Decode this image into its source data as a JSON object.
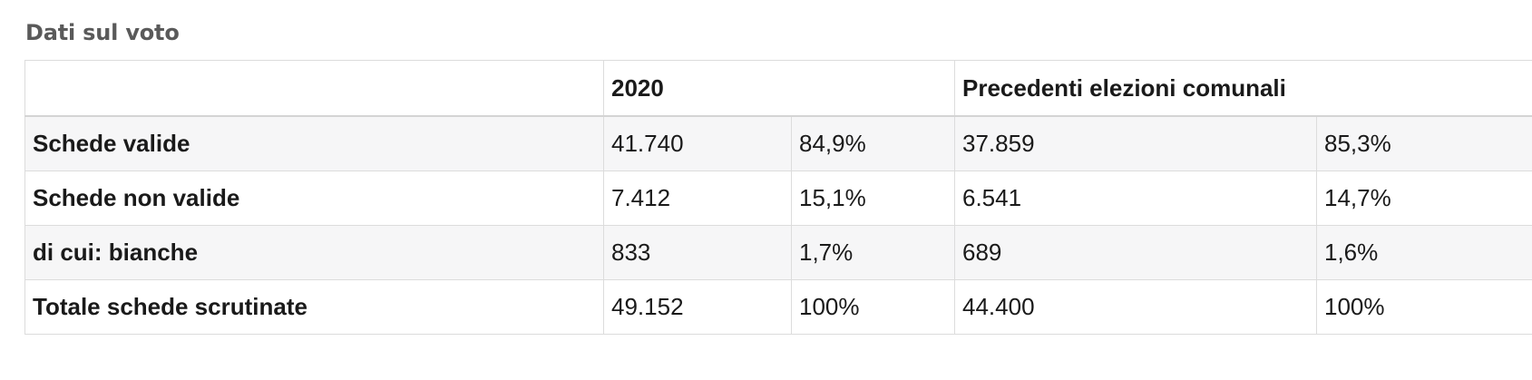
{
  "section": {
    "title": "Dati sul voto"
  },
  "table": {
    "header": {
      "label": "",
      "year": "2020",
      "previous": "Precedenti elezioni comunali"
    },
    "rows": [
      {
        "label": "Schede valide",
        "v2020": "41.740",
        "p2020": "84,9%",
        "vprev": "37.859",
        "pprev": "85,3%"
      },
      {
        "label": "Schede non valide",
        "v2020": "7.412",
        "p2020": "15,1%",
        "vprev": "6.541",
        "pprev": "14,7%"
      },
      {
        "label": "di cui: bianche",
        "v2020": "833",
        "p2020": "1,7%",
        "vprev": "689",
        "pprev": "1,6%"
      },
      {
        "label": "Totale schede scrutinate",
        "v2020": "49.152",
        "p2020": "100%",
        "vprev": "44.400",
        "pprev": "100%"
      }
    ]
  }
}
